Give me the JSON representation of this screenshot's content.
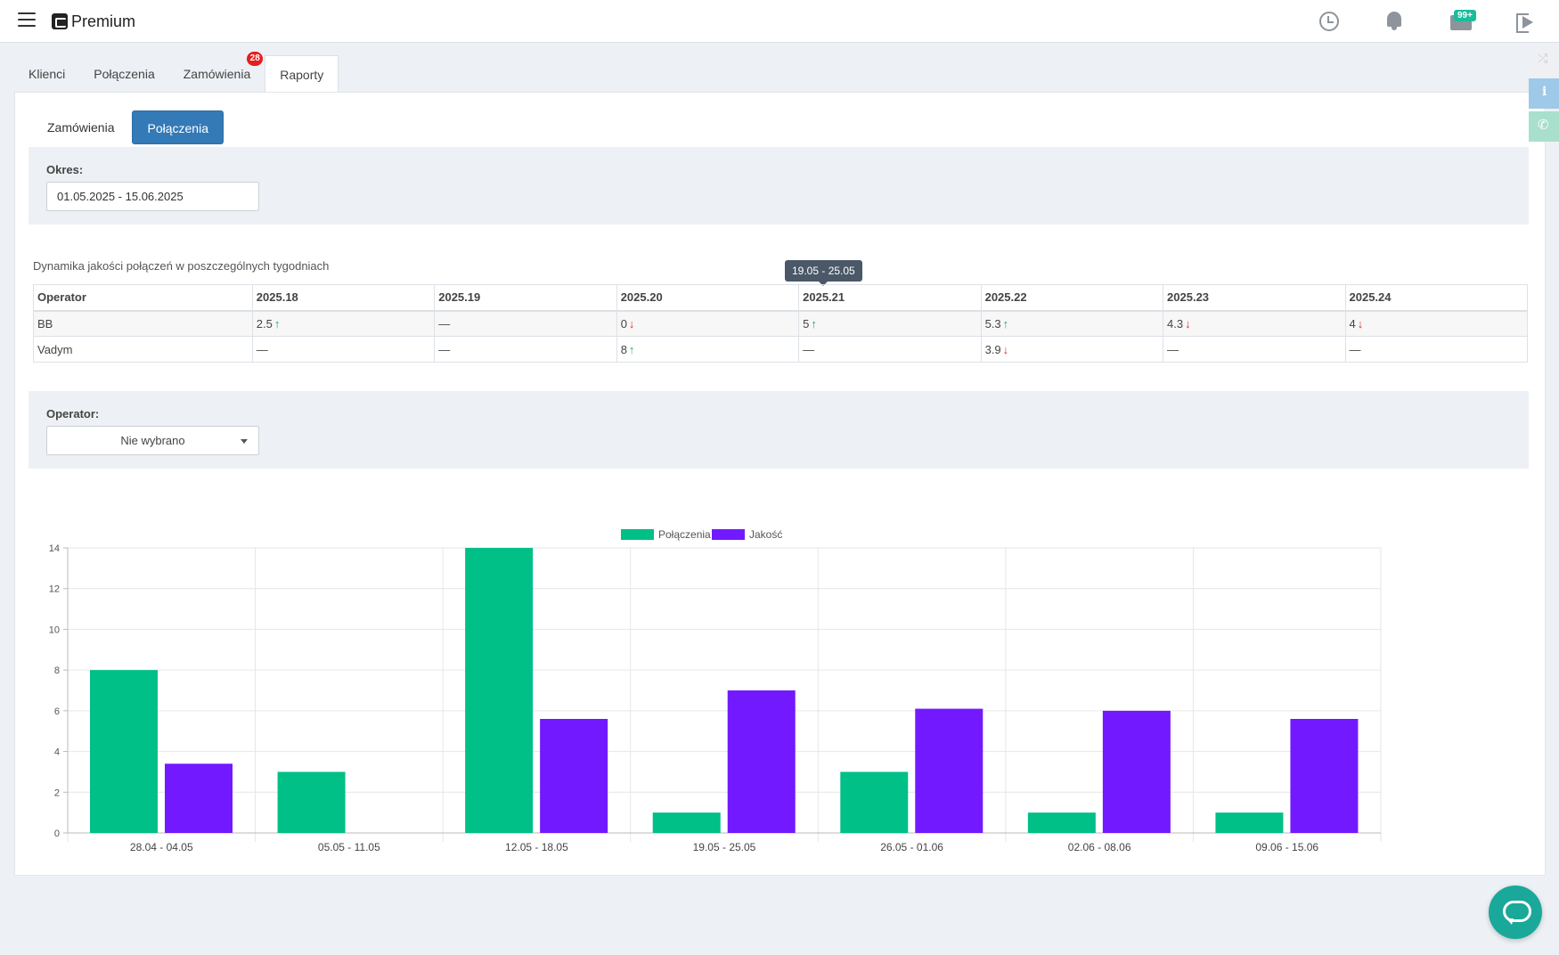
{
  "app": {
    "brand": "Premium"
  },
  "header": {
    "mail_badge": "99+"
  },
  "tabs": [
    {
      "label": "Klienci"
    },
    {
      "label": "Połączenia"
    },
    {
      "label": "Zamówienia",
      "badge": "28"
    },
    {
      "label": "Raporty",
      "active": true
    }
  ],
  "subtabs": [
    {
      "label": "Zamówienia"
    },
    {
      "label": "Połączenia",
      "active": true
    }
  ],
  "period": {
    "label": "Okres:",
    "value": "01.05.2025 - 15.06.2025"
  },
  "table": {
    "caption": "Dynamika jakości połączeń w poszczególnych tygodniach",
    "tooltip": "19.05 - 25.05",
    "headers": [
      "Operator",
      "2025.18",
      "2025.19",
      "2025.20",
      "2025.21",
      "2025.22",
      "2025.23",
      "2025.24"
    ],
    "rows": [
      {
        "operator": "BB",
        "cells": [
          {
            "value": "2.5",
            "trend": "up"
          },
          {
            "value": "—",
            "trend": ""
          },
          {
            "value": "0",
            "trend": "down"
          },
          {
            "value": "5",
            "trend": "up"
          },
          {
            "value": "5.3",
            "trend": "up"
          },
          {
            "value": "4.3",
            "trend": "down"
          },
          {
            "value": "4",
            "trend": "down"
          }
        ]
      },
      {
        "operator": "Vadym",
        "cells": [
          {
            "value": "—",
            "trend": ""
          },
          {
            "value": "—",
            "trend": ""
          },
          {
            "value": "8",
            "trend": "up"
          },
          {
            "value": "—",
            "trend": ""
          },
          {
            "value": "3.9",
            "trend": "down"
          },
          {
            "value": "—",
            "trend": ""
          },
          {
            "value": "—",
            "trend": ""
          }
        ]
      }
    ]
  },
  "operator_filter": {
    "label": "Operator:",
    "value": "Nie wybrano"
  },
  "colors": {
    "connections": "#00bf87",
    "quality": "#7219ff",
    "trend_up": "#1aa87a",
    "trend_down": "#e02b2b",
    "primary": "#337ab7"
  },
  "chart_data": {
    "type": "bar",
    "categories": [
      "28.04 - 04.05",
      "05.05 - 11.05",
      "12.05 - 18.05",
      "19.05 - 25.05",
      "26.05 - 01.06",
      "02.06 - 08.06",
      "09.06 - 15.06"
    ],
    "series": [
      {
        "name": "Połączenia",
        "color": "#00bf87",
        "values": [
          8,
          3,
          14,
          1,
          3,
          1,
          1
        ]
      },
      {
        "name": "Jakość",
        "color": "#7219ff",
        "values": [
          3.4,
          0,
          5.6,
          7,
          6.1,
          6,
          5.6
        ]
      }
    ],
    "ylim": [
      0,
      14
    ],
    "yticks": [
      0,
      2,
      4,
      6,
      8,
      10,
      12,
      14
    ],
    "grid": true,
    "legend": "top-center"
  }
}
